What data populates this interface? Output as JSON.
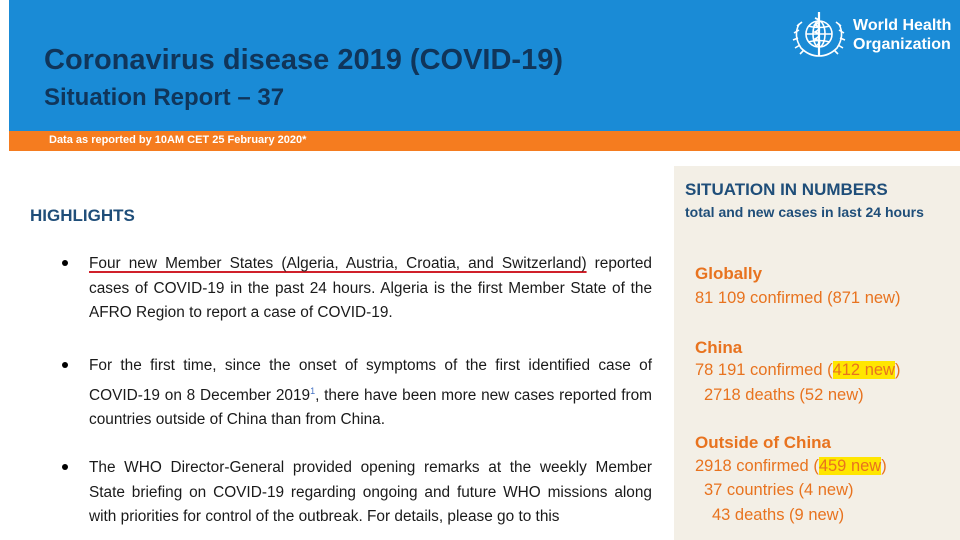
{
  "header": {
    "title": "Coronavirus disease 2019 (COVID-19)",
    "subtitle": "Situation Report – 37",
    "logo": {
      "icon": "who-emblem-icon",
      "line1": "World Health",
      "line2": "Organization"
    }
  },
  "date_line": "Data as reported by 10AM CET 25 February 2020*",
  "highlights": {
    "title": "HIGHLIGHTS",
    "items": [
      {
        "lead": "Four new Member States (Algeria, Austria, Croatia, and Switzerland)",
        "text": " reported cases of COVID-19 in the past 24 hours. Algeria is the first Member State of the AFRO Region to report a case of COVID-19."
      },
      {
        "text_before": "For the first time, since the onset of symptoms of the first identified case of COVID-19 on 8 December 2019",
        "footnote": "1",
        "text_after": ", there have been more new cases reported from countries outside of China than from China."
      },
      {
        "text": "The WHO Director-General provided opening remarks at the weekly Member State briefing on COVID-19 regarding ongoing and future WHO missions along with priorities for control of the outbreak. For details, please go to this"
      }
    ]
  },
  "situation": {
    "title": "SITUATION IN NUMBERS",
    "subtitle": "total and new cases in last 24 hours",
    "globally": {
      "label": "Globally",
      "confirmed": "81 109 confirmed (871 new)"
    },
    "china": {
      "label": "China",
      "confirmed_pre": "78 191 confirmed (",
      "confirmed_new": "412 new",
      "confirmed_post": ")",
      "deaths": "2718 deaths (52 new)"
    },
    "outside": {
      "label": "Outside of China",
      "confirmed_pre": "2918 confirmed (",
      "confirmed_new": "459 new",
      "confirmed_post": ")",
      "countries": "37 countries (4 new)",
      "deaths": "43 deaths (9 new)"
    }
  },
  "colors": {
    "header_blue": "#1a8bd6",
    "title_navy": "#10355a",
    "orange_bar": "#f57c1f",
    "stat_orange": "#e8731f",
    "highlight_yellow": "#ffe600",
    "panel_beige": "#f3efe6"
  }
}
